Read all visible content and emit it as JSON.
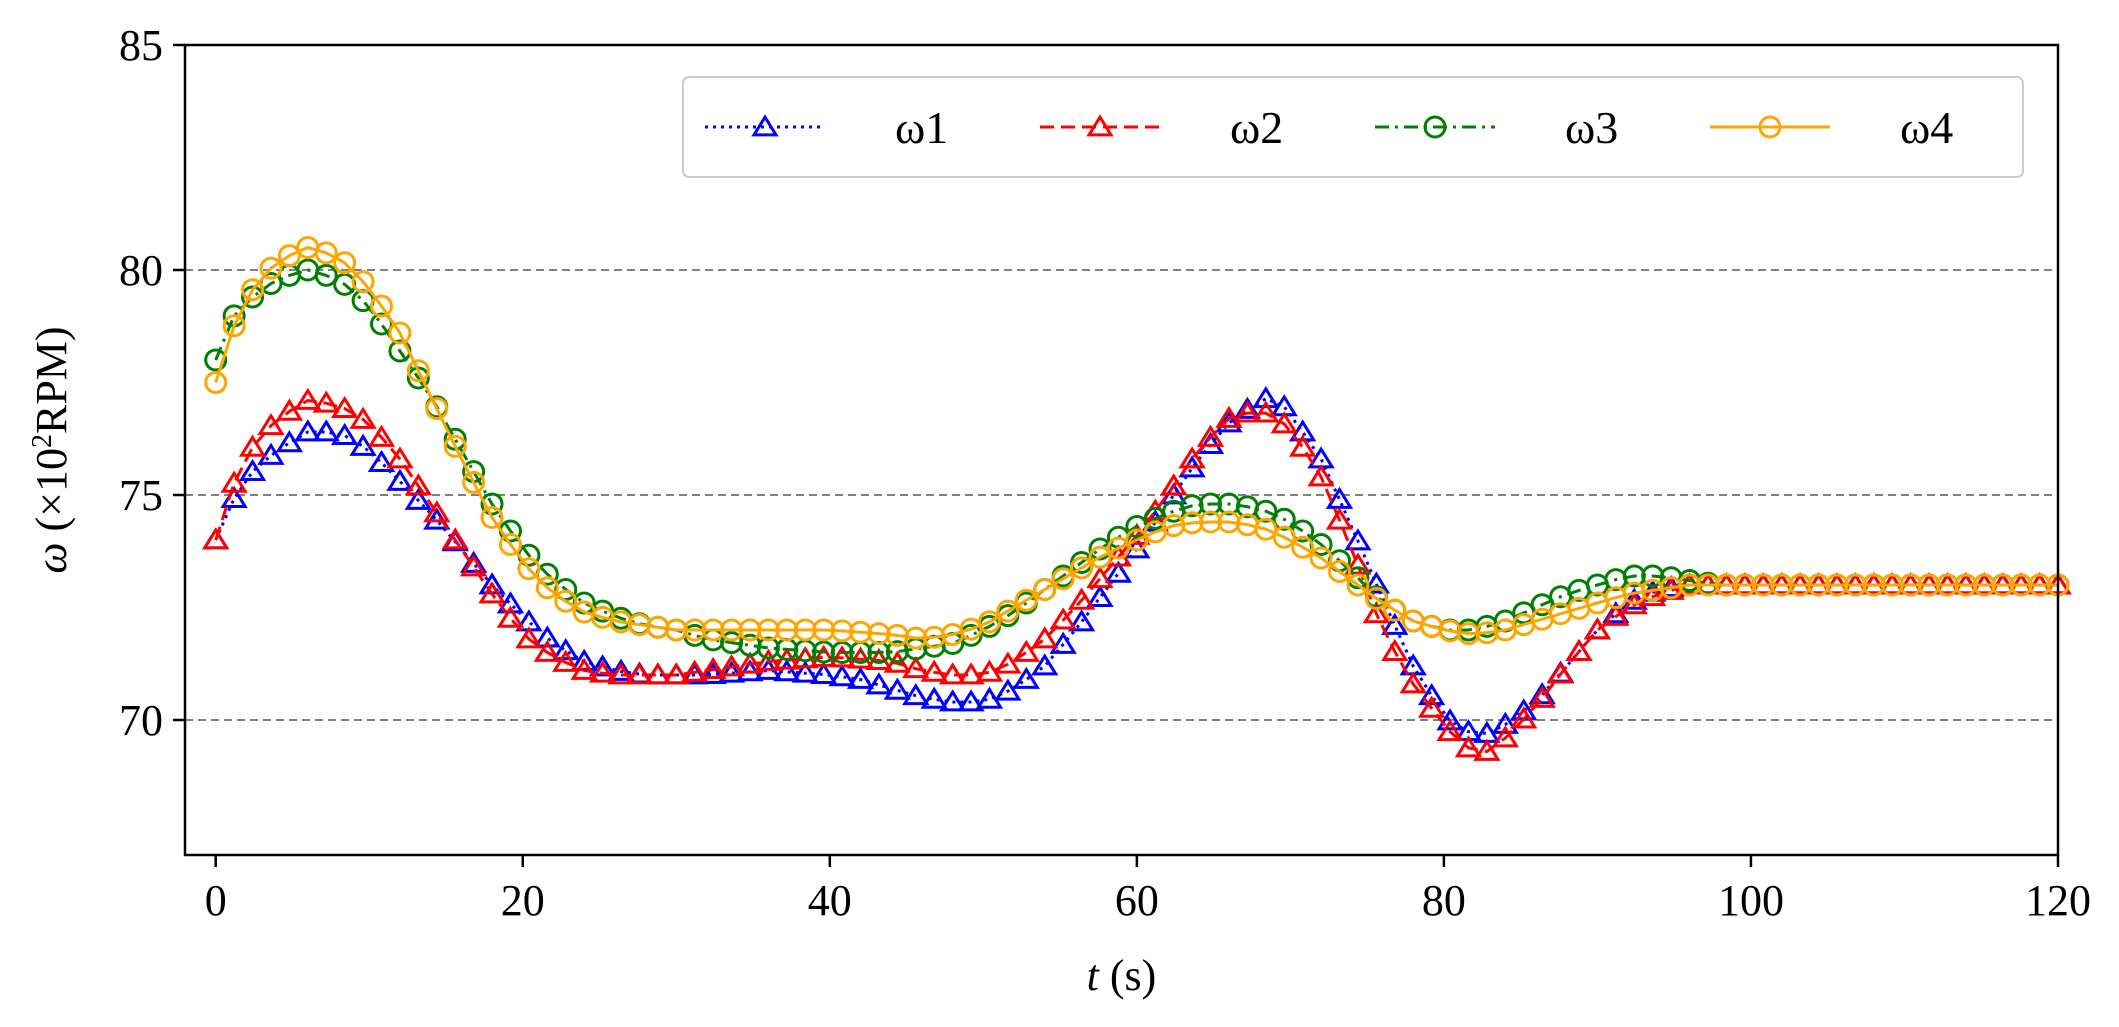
{
  "chart_data": {
    "type": "line",
    "title": "",
    "xlabel": {
      "var": "t",
      "unit": " (s)"
    },
    "ylabel": {
      "var": "ω",
      "prefix": " (×10",
      "exp": "2",
      "suffix": "RPM)"
    },
    "xlim": [
      -2,
      120
    ],
    "ylim": [
      67,
      85
    ],
    "x_ticks": [
      0,
      20,
      40,
      60,
      80,
      100,
      120
    ],
    "y_ticks": [
      70,
      75,
      80,
      85
    ],
    "y_tick_labels": [
      "70",
      "75",
      "80",
      "85"
    ],
    "x_tick_labels": [
      "0",
      "20",
      "40",
      "60",
      "80",
      "100",
      "120"
    ],
    "grid_y": [
      70,
      75,
      80
    ],
    "legend_position": "top-right",
    "sample_step": 1.2,
    "series": [
      {
        "name": "ω1",
        "color": "#0000ff",
        "linestyle": "dotted",
        "marker": "triangle",
        "points": [
          [
            0,
            74
          ],
          [
            1,
            74.8
          ],
          [
            2,
            75.4
          ],
          [
            4,
            76
          ],
          [
            6,
            76.4
          ],
          [
            8,
            76.4
          ],
          [
            10,
            76
          ],
          [
            12,
            75.3
          ],
          [
            14,
            74.6
          ],
          [
            16,
            73.8
          ],
          [
            18,
            73
          ],
          [
            20,
            72.3
          ],
          [
            22,
            71.7
          ],
          [
            24,
            71.3
          ],
          [
            26,
            71.1
          ],
          [
            28,
            71
          ],
          [
            30,
            71
          ],
          [
            32,
            71
          ],
          [
            36,
            71.1
          ],
          [
            40,
            71
          ],
          [
            42,
            70.9
          ],
          [
            44,
            70.7
          ],
          [
            46,
            70.5
          ],
          [
            48,
            70.4
          ],
          [
            50,
            70.4
          ],
          [
            52,
            70.7
          ],
          [
            54,
            71.2
          ],
          [
            56,
            72
          ],
          [
            58,
            72.9
          ],
          [
            60,
            73.8
          ],
          [
            62,
            74.8
          ],
          [
            64,
            75.8
          ],
          [
            66,
            76.6
          ],
          [
            68,
            77.1
          ],
          [
            69,
            77.2
          ],
          [
            70,
            76.8
          ],
          [
            72,
            75.8
          ],
          [
            74,
            74.3
          ],
          [
            76,
            72.7
          ],
          [
            78,
            71.2
          ],
          [
            80,
            70.1
          ],
          [
            81,
            69.8
          ],
          [
            82,
            69.7
          ],
          [
            83,
            69.7
          ],
          [
            84,
            69.9
          ],
          [
            86,
            70.4
          ],
          [
            88,
            71.2
          ],
          [
            90,
            72
          ],
          [
            92,
            72.6
          ],
          [
            94,
            72.9
          ],
          [
            96,
            73
          ],
          [
            100,
            73
          ],
          [
            120,
            73
          ]
        ]
      },
      {
        "name": "ω2",
        "color": "#ff0000",
        "linestyle": "dashed",
        "marker": "triangle",
        "points": [
          [
            0,
            74
          ],
          [
            1,
            75.1
          ],
          [
            2,
            75.9
          ],
          [
            4,
            76.7
          ],
          [
            6,
            77.1
          ],
          [
            8,
            77
          ],
          [
            10,
            76.6
          ],
          [
            12,
            75.8
          ],
          [
            14,
            74.8
          ],
          [
            16,
            73.8
          ],
          [
            18,
            72.8
          ],
          [
            20,
            71.9
          ],
          [
            22,
            71.4
          ],
          [
            24,
            71.1
          ],
          [
            26,
            71
          ],
          [
            28,
            71
          ],
          [
            30,
            71
          ],
          [
            32,
            71.1
          ],
          [
            36,
            71.3
          ],
          [
            40,
            71.4
          ],
          [
            44,
            71.3
          ],
          [
            46,
            71.1
          ],
          [
            48,
            71
          ],
          [
            50,
            71
          ],
          [
            52,
            71.3
          ],
          [
            54,
            71.8
          ],
          [
            56,
            72.5
          ],
          [
            58,
            73.3
          ],
          [
            60,
            74.1
          ],
          [
            62,
            75
          ],
          [
            64,
            76
          ],
          [
            66,
            76.7
          ],
          [
            68,
            76.9
          ],
          [
            70,
            76.5
          ],
          [
            72,
            75.4
          ],
          [
            74,
            73.8
          ],
          [
            76,
            72
          ],
          [
            78,
            70.8
          ],
          [
            80,
            69.9
          ],
          [
            81,
            69.5
          ],
          [
            82,
            69.3
          ],
          [
            83,
            69.3
          ],
          [
            84,
            69.6
          ],
          [
            86,
            70.3
          ],
          [
            88,
            71.2
          ],
          [
            90,
            72
          ],
          [
            92,
            72.5
          ],
          [
            94,
            72.8
          ],
          [
            96,
            73
          ],
          [
            100,
            73
          ],
          [
            120,
            73
          ]
        ]
      },
      {
        "name": "ω3",
        "color": "#008000",
        "linestyle": "dashdot",
        "marker": "circle",
        "points": [
          [
            0,
            78
          ],
          [
            1,
            78.9
          ],
          [
            2,
            79.3
          ],
          [
            4,
            79.8
          ],
          [
            6,
            80
          ],
          [
            8,
            79.8
          ],
          [
            10,
            79.2
          ],
          [
            12,
            78.2
          ],
          [
            14,
            77.2
          ],
          [
            16,
            76
          ],
          [
            18,
            74.8
          ],
          [
            20,
            73.8
          ],
          [
            22,
            73.1
          ],
          [
            24,
            72.6
          ],
          [
            26,
            72.3
          ],
          [
            28,
            72.1
          ],
          [
            30,
            72
          ],
          [
            32,
            71.8
          ],
          [
            36,
            71.6
          ],
          [
            40,
            71.5
          ],
          [
            44,
            71.5
          ],
          [
            46,
            71.6
          ],
          [
            48,
            71.7
          ],
          [
            50,
            72
          ],
          [
            52,
            72.4
          ],
          [
            54,
            72.9
          ],
          [
            56,
            73.4
          ],
          [
            58,
            73.9
          ],
          [
            60,
            74.3
          ],
          [
            62,
            74.6
          ],
          [
            64,
            74.8
          ],
          [
            66,
            74.8
          ],
          [
            68,
            74.7
          ],
          [
            70,
            74.4
          ],
          [
            72,
            73.9
          ],
          [
            74,
            73.3
          ],
          [
            76,
            72.6
          ],
          [
            78,
            72.2
          ],
          [
            80,
            72
          ],
          [
            82,
            72
          ],
          [
            84,
            72.2
          ],
          [
            86,
            72.5
          ],
          [
            88,
            72.8
          ],
          [
            90,
            73
          ],
          [
            92,
            73.2
          ],
          [
            94,
            73.2
          ],
          [
            96,
            73.1
          ],
          [
            98,
            73
          ],
          [
            100,
            73
          ],
          [
            120,
            73
          ]
        ]
      },
      {
        "name": "ω4",
        "color": "#ffa500",
        "linestyle": "solid",
        "marker": "circle",
        "points": [
          [
            0,
            77.5
          ],
          [
            1,
            78.6
          ],
          [
            2,
            79.4
          ],
          [
            4,
            80.2
          ],
          [
            6,
            80.5
          ],
          [
            8,
            80.3
          ],
          [
            10,
            79.6
          ],
          [
            12,
            78.6
          ],
          [
            14,
            77.2
          ],
          [
            16,
            75.8
          ],
          [
            18,
            74.5
          ],
          [
            20,
            73.5
          ],
          [
            22,
            72.8
          ],
          [
            24,
            72.4
          ],
          [
            26,
            72.2
          ],
          [
            28,
            72.1
          ],
          [
            30,
            72
          ],
          [
            32,
            72
          ],
          [
            36,
            72
          ],
          [
            40,
            72
          ],
          [
            44,
            71.9
          ],
          [
            46,
            71.8
          ],
          [
            48,
            71.9
          ],
          [
            50,
            72.1
          ],
          [
            52,
            72.5
          ],
          [
            54,
            72.9
          ],
          [
            56,
            73.3
          ],
          [
            58,
            73.7
          ],
          [
            60,
            74
          ],
          [
            62,
            74.3
          ],
          [
            64,
            74.4
          ],
          [
            66,
            74.4
          ],
          [
            68,
            74.3
          ],
          [
            70,
            74
          ],
          [
            72,
            73.6
          ],
          [
            74,
            73.1
          ],
          [
            76,
            72.6
          ],
          [
            78,
            72.2
          ],
          [
            80,
            72
          ],
          [
            82,
            71.9
          ],
          [
            84,
            72
          ],
          [
            86,
            72.2
          ],
          [
            88,
            72.4
          ],
          [
            90,
            72.6
          ],
          [
            92,
            72.8
          ],
          [
            94,
            72.9
          ],
          [
            96,
            73
          ],
          [
            100,
            73
          ],
          [
            120,
            73
          ]
        ]
      }
    ]
  }
}
